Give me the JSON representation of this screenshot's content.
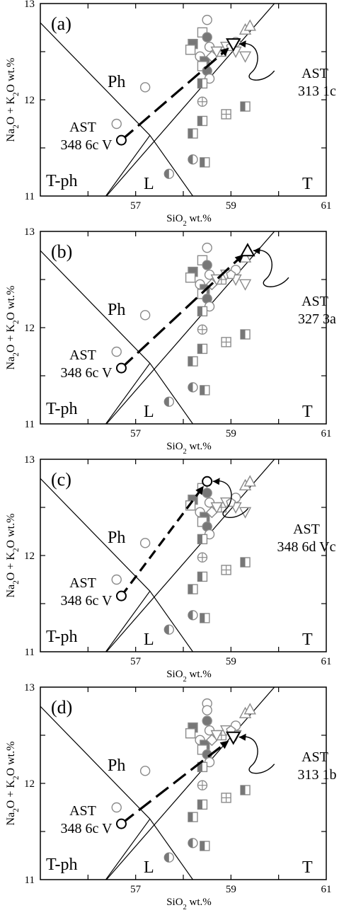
{
  "chart_data": [
    {
      "type": "scatter",
      "panel_label": "(a)",
      "xlabel": "SiO2 wt.%",
      "ylabel": "Na2O + K2O wt.%",
      "xlim": [
        55,
        61
      ],
      "ylim": [
        11,
        13
      ],
      "xticks": [
        "57",
        "59",
        "61"
      ],
      "yticks": [
        "11",
        "12",
        "13"
      ],
      "fields": [
        "Ph",
        "T-ph",
        "L",
        "T"
      ],
      "start": {
        "label_1": "AST",
        "label_2": "348 6c V",
        "x": 56.7,
        "y": 11.58
      },
      "end": {
        "label_1": "AST",
        "label_2": "313 1c",
        "x": 59.05,
        "y": 12.58,
        "marker": "triangle-down"
      },
      "arrow_style": "long-dash",
      "points": [
        {
          "x": 58.5,
          "y": 12.83,
          "m": "circle"
        },
        {
          "x": 58.4,
          "y": 12.7,
          "m": "square"
        },
        {
          "x": 58.2,
          "y": 12.58,
          "m": "square-filled"
        },
        {
          "x": 58.5,
          "y": 12.65,
          "m": "circle-filled"
        },
        {
          "x": 58.15,
          "y": 12.52,
          "m": "square"
        },
        {
          "x": 58.55,
          "y": 12.55,
          "m": "circle"
        },
        {
          "x": 58.35,
          "y": 12.45,
          "m": "circle"
        },
        {
          "x": 58.45,
          "y": 12.4,
          "m": "square-filled"
        },
        {
          "x": 58.6,
          "y": 12.45,
          "m": "diamond"
        },
        {
          "x": 58.8,
          "y": 12.5,
          "m": "square-cross"
        },
        {
          "x": 58.9,
          "y": 12.55,
          "m": "triangle-down"
        },
        {
          "x": 58.7,
          "y": 12.5,
          "m": "triangle-down"
        },
        {
          "x": 59.1,
          "y": 12.5,
          "m": "triangle-down"
        },
        {
          "x": 59.3,
          "y": 12.45,
          "m": "triangle-down"
        },
        {
          "x": 59.1,
          "y": 12.6,
          "m": "circle"
        },
        {
          "x": 59.0,
          "y": 12.55,
          "m": "pentagon"
        },
        {
          "x": 59.3,
          "y": 12.73,
          "m": "triangle"
        },
        {
          "x": 59.4,
          "y": 12.77,
          "m": "triangle"
        },
        {
          "x": 58.4,
          "y": 12.35,
          "m": "square"
        },
        {
          "x": 58.5,
          "y": 12.3,
          "m": "circle-filled"
        },
        {
          "x": 58.55,
          "y": 12.22,
          "m": "circle"
        },
        {
          "x": 58.4,
          "y": 12.17,
          "m": "square-half"
        },
        {
          "x": 58.4,
          "y": 11.98,
          "m": "circle-cross"
        },
        {
          "x": 58.9,
          "y": 11.85,
          "m": "square-cross"
        },
        {
          "x": 59.3,
          "y": 11.93,
          "m": "square-half"
        },
        {
          "x": 58.4,
          "y": 11.78,
          "m": "square-half"
        },
        {
          "x": 58.2,
          "y": 11.65,
          "m": "square-half"
        },
        {
          "x": 58.2,
          "y": 11.38,
          "m": "circle-half"
        },
        {
          "x": 58.45,
          "y": 11.35,
          "m": "square-half"
        },
        {
          "x": 57.7,
          "y": 11.23,
          "m": "circle-half"
        },
        {
          "x": 57.2,
          "y": 12.13,
          "m": "circle"
        },
        {
          "x": 56.6,
          "y": 11.75,
          "m": "circle"
        }
      ]
    },
    {
      "type": "scatter",
      "panel_label": "(b)",
      "xlabel": "SiO2 wt.%",
      "ylabel": "Na2O + K2O wt.%",
      "xlim": [
        55,
        61
      ],
      "ylim": [
        11,
        13
      ],
      "xticks": [
        "57",
        "59",
        "61"
      ],
      "yticks": [
        "11",
        "12",
        "13"
      ],
      "fields": [
        "Ph",
        "T-ph",
        "L",
        "T"
      ],
      "start": {
        "label_1": "AST",
        "label_2": "348 6c V",
        "x": 56.7,
        "y": 11.58
      },
      "end": {
        "label_1": "AST",
        "label_2": "327 3a",
        "x": 59.35,
        "y": 12.8,
        "marker": "triangle"
      },
      "arrow_style": "long-dash",
      "points": [
        {
          "x": 58.5,
          "y": 12.83,
          "m": "circle"
        },
        {
          "x": 58.4,
          "y": 12.7,
          "m": "square"
        },
        {
          "x": 58.2,
          "y": 12.58,
          "m": "square-filled"
        },
        {
          "x": 58.5,
          "y": 12.65,
          "m": "circle-filled"
        },
        {
          "x": 58.15,
          "y": 12.52,
          "m": "square"
        },
        {
          "x": 58.55,
          "y": 12.55,
          "m": "circle"
        },
        {
          "x": 58.35,
          "y": 12.45,
          "m": "circle"
        },
        {
          "x": 58.45,
          "y": 12.4,
          "m": "square-filled"
        },
        {
          "x": 58.6,
          "y": 12.45,
          "m": "diamond"
        },
        {
          "x": 58.8,
          "y": 12.5,
          "m": "square-cross"
        },
        {
          "x": 58.9,
          "y": 12.55,
          "m": "triangle-down"
        },
        {
          "x": 58.7,
          "y": 12.5,
          "m": "triangle-down"
        },
        {
          "x": 59.1,
          "y": 12.5,
          "m": "triangle-down"
        },
        {
          "x": 59.3,
          "y": 12.45,
          "m": "triangle-down"
        },
        {
          "x": 59.1,
          "y": 12.6,
          "m": "circle"
        },
        {
          "x": 59.0,
          "y": 12.55,
          "m": "pentagon"
        },
        {
          "x": 59.3,
          "y": 12.73,
          "m": "triangle"
        },
        {
          "x": 58.4,
          "y": 12.35,
          "m": "square"
        },
        {
          "x": 58.5,
          "y": 12.3,
          "m": "circle-filled"
        },
        {
          "x": 58.55,
          "y": 12.22,
          "m": "circle"
        },
        {
          "x": 58.4,
          "y": 12.17,
          "m": "square-half"
        },
        {
          "x": 58.4,
          "y": 11.98,
          "m": "circle-cross"
        },
        {
          "x": 58.9,
          "y": 11.85,
          "m": "square-cross"
        },
        {
          "x": 59.3,
          "y": 11.93,
          "m": "square-half"
        },
        {
          "x": 58.4,
          "y": 11.78,
          "m": "square-half"
        },
        {
          "x": 58.2,
          "y": 11.65,
          "m": "square-half"
        },
        {
          "x": 58.2,
          "y": 11.38,
          "m": "circle-half"
        },
        {
          "x": 58.45,
          "y": 11.35,
          "m": "square-half"
        },
        {
          "x": 57.7,
          "y": 11.23,
          "m": "circle-half"
        },
        {
          "x": 57.2,
          "y": 12.13,
          "m": "circle"
        },
        {
          "x": 56.6,
          "y": 11.75,
          "m": "circle"
        }
      ]
    },
    {
      "type": "scatter",
      "panel_label": "(c)",
      "xlabel": "SiO2 wt.%",
      "ylabel": "Na2O + K2O wt.%",
      "xlim": [
        55,
        61
      ],
      "ylim": [
        11,
        13
      ],
      "xticks": [
        "57",
        "59",
        "61"
      ],
      "yticks": [
        "11",
        "12",
        "13"
      ],
      "fields": [
        "Ph",
        "T-ph",
        "L",
        "T"
      ],
      "start": {
        "label_1": "AST",
        "label_2": "348 6c V",
        "x": 56.7,
        "y": 11.58
      },
      "end": {
        "label_1": "AST",
        "label_2": "348 6d Vc",
        "x": 58.5,
        "y": 12.77,
        "marker": "circle"
      },
      "arrow_style": "medium-dash",
      "points": [
        {
          "x": 58.4,
          "y": 12.7,
          "m": "square"
        },
        {
          "x": 58.2,
          "y": 12.58,
          "m": "square-filled"
        },
        {
          "x": 58.5,
          "y": 12.65,
          "m": "circle-filled"
        },
        {
          "x": 58.15,
          "y": 12.52,
          "m": "square"
        },
        {
          "x": 58.55,
          "y": 12.55,
          "m": "circle"
        },
        {
          "x": 58.35,
          "y": 12.45,
          "m": "circle"
        },
        {
          "x": 58.45,
          "y": 12.4,
          "m": "square-filled"
        },
        {
          "x": 58.6,
          "y": 12.45,
          "m": "diamond"
        },
        {
          "x": 58.8,
          "y": 12.5,
          "m": "square-cross"
        },
        {
          "x": 58.9,
          "y": 12.55,
          "m": "triangle-down"
        },
        {
          "x": 58.7,
          "y": 12.5,
          "m": "triangle-down"
        },
        {
          "x": 59.1,
          "y": 12.5,
          "m": "triangle-down"
        },
        {
          "x": 59.3,
          "y": 12.45,
          "m": "triangle-down"
        },
        {
          "x": 59.1,
          "y": 12.6,
          "m": "circle"
        },
        {
          "x": 59.0,
          "y": 12.55,
          "m": "pentagon"
        },
        {
          "x": 59.3,
          "y": 12.73,
          "m": "triangle"
        },
        {
          "x": 59.4,
          "y": 12.77,
          "m": "triangle"
        },
        {
          "x": 58.4,
          "y": 12.35,
          "m": "square"
        },
        {
          "x": 58.5,
          "y": 12.3,
          "m": "circle-filled"
        },
        {
          "x": 58.55,
          "y": 12.22,
          "m": "circle"
        },
        {
          "x": 58.4,
          "y": 12.17,
          "m": "square-half"
        },
        {
          "x": 58.4,
          "y": 11.98,
          "m": "circle-cross"
        },
        {
          "x": 58.9,
          "y": 11.85,
          "m": "square-cross"
        },
        {
          "x": 59.3,
          "y": 11.93,
          "m": "square-half"
        },
        {
          "x": 58.4,
          "y": 11.78,
          "m": "square-half"
        },
        {
          "x": 58.2,
          "y": 11.65,
          "m": "square-half"
        },
        {
          "x": 58.2,
          "y": 11.38,
          "m": "circle-half"
        },
        {
          "x": 58.45,
          "y": 11.35,
          "m": "square-half"
        },
        {
          "x": 57.7,
          "y": 11.23,
          "m": "circle-half"
        },
        {
          "x": 57.2,
          "y": 12.13,
          "m": "circle"
        },
        {
          "x": 56.6,
          "y": 11.75,
          "m": "circle"
        }
      ]
    },
    {
      "type": "scatter",
      "panel_label": "(d)",
      "xlabel": "SiO2 wt.%",
      "ylabel": "Na2O + K2O wt.%",
      "xlim": [
        55,
        61
      ],
      "ylim": [
        11,
        13
      ],
      "xticks": [
        "57",
        "59",
        "61"
      ],
      "yticks": [
        "11",
        "12",
        "13"
      ],
      "fields": [
        "Ph",
        "T-ph",
        "L",
        "T"
      ],
      "start": {
        "label_1": "AST",
        "label_2": "348 6c V",
        "x": 56.7,
        "y": 11.58
      },
      "end": {
        "label_1": "AST",
        "label_2": "313 1b",
        "x": 59.05,
        "y": 12.48,
        "marker": "triangle-down"
      },
      "arrow_style": "long-dash",
      "points": [
        {
          "x": 58.5,
          "y": 12.83,
          "m": "circle"
        },
        {
          "x": 58.5,
          "y": 12.76,
          "m": "circle"
        },
        {
          "x": 58.2,
          "y": 12.58,
          "m": "square-filled"
        },
        {
          "x": 58.5,
          "y": 12.65,
          "m": "circle-filled"
        },
        {
          "x": 58.15,
          "y": 12.52,
          "m": "square"
        },
        {
          "x": 58.55,
          "y": 12.55,
          "m": "circle"
        },
        {
          "x": 58.35,
          "y": 12.45,
          "m": "circle"
        },
        {
          "x": 58.45,
          "y": 12.4,
          "m": "square-filled"
        },
        {
          "x": 58.6,
          "y": 12.45,
          "m": "diamond"
        },
        {
          "x": 58.8,
          "y": 12.5,
          "m": "square-cross"
        },
        {
          "x": 58.9,
          "y": 12.55,
          "m": "triangle-down"
        },
        {
          "x": 58.7,
          "y": 12.5,
          "m": "triangle-down"
        },
        {
          "x": 59.1,
          "y": 12.5,
          "m": "triangle-down"
        },
        {
          "x": 59.1,
          "y": 12.6,
          "m": "circle"
        },
        {
          "x": 59.0,
          "y": 12.55,
          "m": "pentagon"
        },
        {
          "x": 59.3,
          "y": 12.73,
          "m": "triangle"
        },
        {
          "x": 59.4,
          "y": 12.77,
          "m": "triangle"
        },
        {
          "x": 58.4,
          "y": 12.35,
          "m": "square"
        },
        {
          "x": 58.5,
          "y": 12.3,
          "m": "circle-filled"
        },
        {
          "x": 58.55,
          "y": 12.22,
          "m": "circle"
        },
        {
          "x": 58.4,
          "y": 12.17,
          "m": "square-half"
        },
        {
          "x": 58.4,
          "y": 11.98,
          "m": "circle-cross"
        },
        {
          "x": 58.9,
          "y": 11.85,
          "m": "square-cross"
        },
        {
          "x": 59.3,
          "y": 11.93,
          "m": "square-half"
        },
        {
          "x": 58.4,
          "y": 11.78,
          "m": "square-half"
        },
        {
          "x": 58.2,
          "y": 11.65,
          "m": "square-half"
        },
        {
          "x": 58.2,
          "y": 11.38,
          "m": "circle-half"
        },
        {
          "x": 58.45,
          "y": 11.35,
          "m": "square-half"
        },
        {
          "x": 57.7,
          "y": 11.23,
          "m": "circle-half"
        },
        {
          "x": 57.2,
          "y": 12.13,
          "m": "circle"
        },
        {
          "x": 56.6,
          "y": 11.75,
          "m": "circle"
        }
      ]
    }
  ],
  "colors": {
    "frame": "#000000",
    "marker_stroke": "#8a8a8a",
    "marker_fill": "#777777",
    "arrow": "#000000"
  }
}
